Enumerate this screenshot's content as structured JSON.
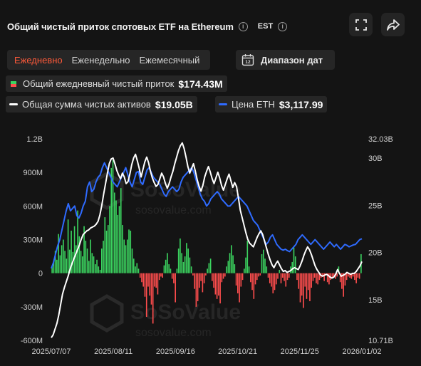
{
  "header": {
    "title": "Общий чистый приток спотовых ETF на Ethereum",
    "timezone": "EST"
  },
  "tabs": [
    "Ежедневно",
    "Еженедельно",
    "Ежемесячный"
  ],
  "date_range_label": "Диапазон дат",
  "calendar_day": "12",
  "legend": {
    "daily_inflow_label": "Общий ежедневный чистый приток",
    "daily_inflow_value": "$174.43M",
    "net_assets_label": "Общая сумма чистых активов",
    "net_assets_value": "$19.05B",
    "eth_price_label": "Цена ETH",
    "eth_price_value": "$3,117.99"
  },
  "watermark": {
    "brand": "SoSoValue",
    "site": "sosovalue.com"
  },
  "colors": {
    "positive": "#3bd35f",
    "negative": "#ff4d4d",
    "net_assets": "#ffffff",
    "eth_price": "#2f6bff",
    "active_tab": "#ff5a3a"
  },
  "chart_data": {
    "type": "bar",
    "x_labels": [
      "2025/07/07",
      "2025/08/11",
      "2025/09/16",
      "2025/10/21",
      "2025/11/25",
      "2026/01/02"
    ],
    "left_axis": {
      "ticks": [
        "1.2B",
        "900M",
        "600M",
        "300M",
        "0",
        "-300M",
        "-600M"
      ],
      "values": [
        1200,
        900,
        600,
        300,
        0,
        -300,
        -600
      ],
      "unit": "M USD",
      "range": [
        -600,
        1200
      ]
    },
    "right_axis": {
      "ticks": [
        "32.03B",
        "30B",
        "25B",
        "20B",
        "15B",
        "10.71B"
      ],
      "values": [
        32.03,
        30,
        25,
        20,
        15,
        10.71
      ],
      "unit": "B USD",
      "range": [
        10.71,
        32.03
      ]
    },
    "eth_price_scale": [
      1000,
      5200
    ],
    "daily_net_inflow": [
      60,
      110,
      200,
      120,
      350,
      160,
      250,
      300,
      200,
      130,
      480,
      210,
      380,
      190,
      420,
      250,
      560,
      330,
      200,
      150,
      420,
      290,
      220,
      110,
      300,
      180,
      150,
      80,
      120,
      60,
      30,
      220,
      290,
      500,
      380,
      430,
      600,
      940,
      1010,
      720,
      650,
      520,
      600,
      760,
      430,
      300,
      250,
      300,
      390,
      380,
      220,
      130,
      60,
      90,
      40,
      -40,
      -80,
      -120,
      -210,
      -390,
      -120,
      -200,
      -280,
      -450,
      -120,
      -130,
      -190,
      -60,
      -30,
      -40,
      70,
      120,
      180,
      80,
      40,
      -50,
      -90,
      -260,
      40,
      220,
      310,
      180,
      100,
      150,
      270,
      220,
      140,
      60,
      -20,
      -140,
      -300,
      -250,
      -130,
      -70,
      -170,
      -90,
      -20,
      40,
      90,
      130,
      -70,
      -130,
      -190,
      -230,
      -200,
      -270,
      -80,
      -50,
      -30,
      60,
      110,
      180,
      250,
      160,
      80,
      -110,
      -180,
      -260,
      -120,
      -60,
      40,
      140,
      290,
      60,
      -80,
      -150,
      -230,
      -100,
      -60,
      -30,
      -20,
      170,
      210,
      130,
      60,
      -40,
      -90,
      -120,
      -180,
      -150,
      -100,
      -50,
      30,
      -90,
      -40,
      -70,
      -120,
      -60,
      -40,
      60,
      100,
      230,
      150,
      -60,
      -140,
      -260,
      -200,
      -310,
      -120,
      -230,
      -150,
      -250,
      -130,
      -70,
      -40,
      -90,
      -100,
      -60,
      -40,
      -30,
      -70,
      -20,
      -80,
      -100,
      -60,
      -40,
      -30,
      -50,
      -30,
      60,
      -80,
      -140,
      -210,
      -110,
      -60,
      -30,
      -40,
      -50,
      -30,
      -60,
      -90,
      -40,
      -50,
      170
    ],
    "total_net_assets_b": [
      11.0,
      11.3,
      11.9,
      12.5,
      13.4,
      14.5,
      15.6,
      16.3,
      16.9,
      17.5,
      18.2,
      18.8,
      19.3,
      19.8,
      20.3,
      20.8,
      21.4,
      21.9,
      22.1,
      22.3,
      22.4,
      22.6,
      22.7,
      22.8,
      23.0,
      23.3,
      24.0,
      25.0,
      26.2,
      27.3,
      28.4,
      29.4,
      29.9,
      30.0,
      29.4,
      28.7,
      28.2,
      27.8,
      28.4,
      28.0,
      27.3,
      27.5,
      28.3,
      29.3,
      30.0,
      30.4,
      29.7,
      28.9,
      28.0,
      28.8,
      29.6,
      30.1,
      29.5,
      28.6,
      27.9,
      27.4,
      27.0,
      27.2,
      27.8,
      28.4,
      28.0,
      27.3,
      26.8,
      27.3,
      28.0,
      28.6,
      29.4,
      30.1,
      30.8,
      31.3,
      31.6,
      31.0,
      30.1,
      29.1,
      28.4,
      28.9,
      29.4,
      28.6,
      27.7,
      27.0,
      26.5,
      27.1,
      28.0,
      28.6,
      29.1,
      28.5,
      27.8,
      27.3,
      27.9,
      28.5,
      27.9,
      27.1,
      26.6,
      27.2,
      27.8,
      28.3,
      27.6,
      26.9,
      27.4,
      27.0,
      25.8,
      24.5,
      23.7,
      22.9,
      22.1,
      21.4,
      21.0,
      20.8,
      20.6,
      21.1,
      21.6,
      22.0,
      22.3,
      21.9,
      21.2,
      20.5,
      19.8,
      19.2,
      18.7,
      18.4,
      18.8,
      19.1,
      18.7,
      18.3,
      18.0,
      18.1,
      17.9,
      18.0,
      18.1,
      18.3,
      18.4,
      18.3,
      18.2,
      18.6,
      19.1,
      19.7,
      20.2,
      20.6,
      20.3,
      19.8,
      19.2,
      18.6,
      18.2,
      17.9,
      17.6,
      17.5,
      17.6,
      17.7,
      17.6,
      17.4,
      17.3,
      17.4,
      17.7,
      18.2,
      17.8,
      17.5,
      17.6,
      17.7,
      17.9,
      17.8,
      17.7,
      17.8,
      17.8,
      18.0,
      18.3,
      18.6,
      19.05
    ],
    "eth_price": [
      2500,
      2620,
      2800,
      2970,
      3100,
      3300,
      3500,
      3700,
      3850,
      3700,
      3750,
      3800,
      3600,
      3550,
      3650,
      3800,
      3900,
      4200,
      4300,
      4100,
      4150,
      4300,
      4400,
      4450,
      4600,
      4700,
      4600,
      4500,
      4400,
      4300,
      4250,
      4200,
      4300,
      4400,
      4500,
      4600,
      4450,
      4300,
      4200,
      4350,
      4500,
      4520,
      4300,
      4250,
      4400,
      4550,
      4600,
      4500,
      4400,
      4350,
      4300,
      4250,
      4150,
      4050,
      4000,
      4100,
      4150,
      4200,
      4150,
      4100,
      4150,
      4300,
      4400,
      4450,
      4500,
      4550,
      4600,
      4500,
      4350,
      4200,
      4050,
      3950,
      3900,
      3800,
      3850,
      3950,
      4000,
      4050,
      4100,
      4050,
      3950,
      3900,
      3850,
      3800,
      3800,
      3850,
      3900,
      3950,
      4000,
      3950,
      3900,
      3850,
      3800,
      3700,
      3600,
      3500,
      3450,
      3400,
      3300,
      3200,
      3100,
      3000,
      3050,
      3150,
      3200,
      3100,
      3000,
      2950,
      2900,
      2880,
      2900,
      2870,
      2850,
      2900,
      2950,
      3000,
      3100,
      3150,
      3200,
      3150,
      3100,
      3050,
      3000,
      3050,
      3100,
      3050,
      3000,
      2950,
      2900,
      2950,
      3000,
      3050,
      3000,
      2950,
      3000,
      2950,
      2900,
      2950,
      3000,
      2980,
      2950,
      2970,
      2990,
      3000,
      3050,
      3100,
      3117.99
    ]
  }
}
